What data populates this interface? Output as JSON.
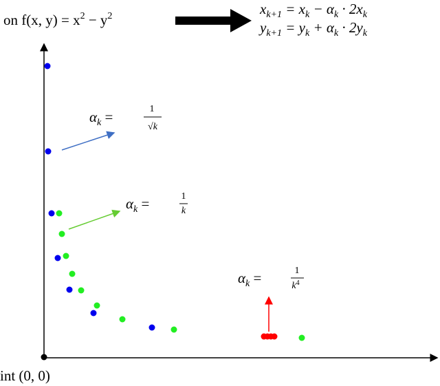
{
  "header": {
    "left": "on f(x, y) = x",
    "sq1": "2",
    "mid": " − y",
    "sq2": "2"
  },
  "update": {
    "x_eq": {
      "lhs": "x",
      "lsub": "k+1",
      "rhs": " = x",
      "s1": "k",
      "op": " − α",
      "s2": "k",
      "tail": " · 2x",
      "s3": "k"
    },
    "y_eq": {
      "lhs": "y",
      "lsub": "k+1",
      "rhs": " = y",
      "s1": "k",
      "op": " + α",
      "s2": "k",
      "tail": " · 2y",
      "s3": "k"
    }
  },
  "labels": [
    {
      "lhs": "α",
      "sub": "k",
      "eq": " = ",
      "num": "1",
      "den": "√k"
    },
    {
      "lhs": "α",
      "sub": "k",
      "eq": " = ",
      "num": "1",
      "den": "k"
    },
    {
      "lhs": "α",
      "sub": "k",
      "eq": " = ",
      "num": "1",
      "den": "k",
      "den_exp": "4"
    }
  ],
  "origin": "int (0, 0)"
}
